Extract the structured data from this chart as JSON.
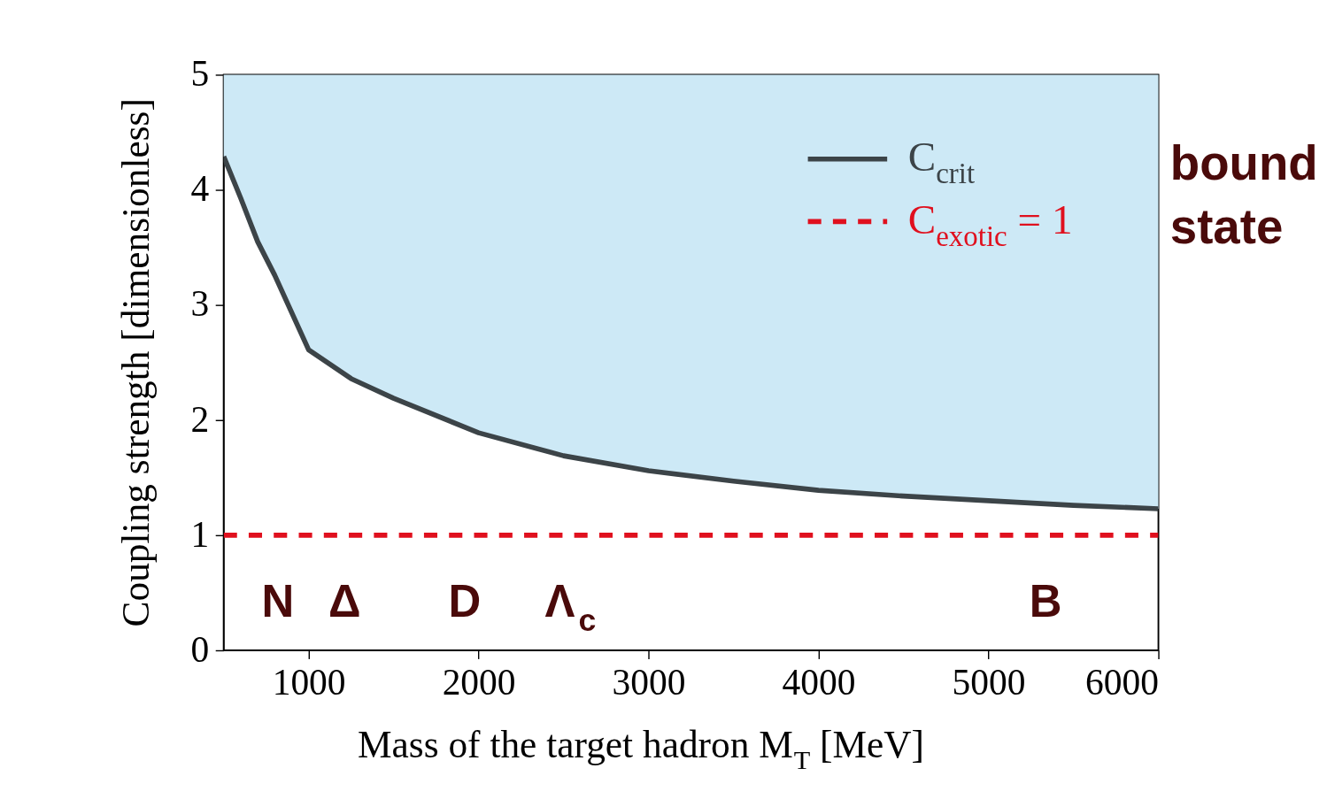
{
  "chart_data": {
    "type": "line",
    "xlabel": "Mass of the target hadron M$_{T}$ [MeV]",
    "ylabel": "Coupling strength [dimensionless]",
    "xlim": [
      500,
      6000
    ],
    "ylim": [
      0,
      5
    ],
    "xticks": [
      1000,
      2000,
      3000,
      4000,
      5000,
      6000
    ],
    "yticks": [
      0,
      1,
      2,
      3,
      4,
      5
    ],
    "grid": false,
    "legend": "top right",
    "series": [
      {
        "name": "C$_{crit}$",
        "color": "#3c4448",
        "line_style": "solid",
        "x": [
          500,
          600,
          700,
          800,
          1000,
          1250,
          1500,
          2000,
          2500,
          3000,
          3500,
          4000,
          4500,
          5000,
          5500,
          6000
        ],
        "values": [
          4.29,
          3.93,
          3.55,
          3.26,
          2.61,
          2.36,
          2.19,
          1.89,
          1.69,
          1.56,
          1.47,
          1.39,
          1.34,
          1.3,
          1.26,
          1.23
        ],
        "lower": [
          4.29,
          3.93,
          3.55,
          3.26,
          2.61,
          2.36,
          2.19,
          1.89,
          1.69,
          1.56,
          1.47,
          1.39,
          1.34,
          1.3,
          1.26,
          1.23
        ],
        "upper": [
          5,
          5,
          5,
          5,
          5,
          5,
          5,
          5,
          5,
          5,
          5,
          5,
          5,
          5,
          5,
          5
        ]
      },
      {
        "name": "C$_{exotic}$ = 1",
        "color": "#e0101e",
        "line_style": "dashed",
        "x": [
          500,
          6000
        ],
        "values": [
          1,
          1
        ]
      }
    ],
    "annotations": [
      "N",
      "Δ",
      "D",
      "Λ$_{c}$",
      "B",
      "bound state"
    ]
  }
}
